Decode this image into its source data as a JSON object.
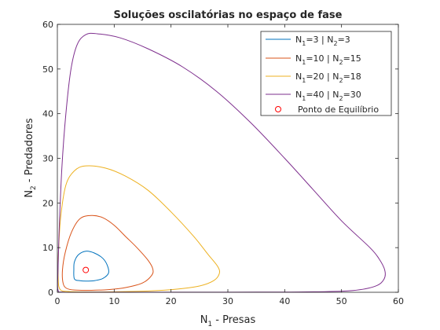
{
  "chart_data": {
    "type": "line",
    "title": "Soluções oscilatórias no espaço de fase",
    "xlabel": {
      "main": "N",
      "sub": "1",
      "rest": " - Presas"
    },
    "ylabel": {
      "main": "N",
      "sub": "2",
      "rest": " - Predadores"
    },
    "xlim": [
      0,
      60
    ],
    "ylim": [
      0,
      60
    ],
    "xticks": [
      0,
      10,
      20,
      30,
      40,
      50,
      60
    ],
    "yticks": [
      0,
      10,
      20,
      30,
      40,
      50,
      60
    ],
    "grid": false,
    "legend_position": "top-right",
    "series": [
      {
        "name": [
          [
            "N",
            "1",
            "=3 | N"
          ],
          [
            "",
            "2",
            "=3"
          ]
        ],
        "color": "#0072BD",
        "points": [
          [
            3,
            3
          ],
          [
            4,
            2.6
          ],
          [
            5,
            2.5
          ],
          [
            6.5,
            2.6
          ],
          [
            8,
            3.1
          ],
          [
            9,
            4.3
          ],
          [
            8.8,
            6
          ],
          [
            8,
            7.6
          ],
          [
            6.5,
            8.8
          ],
          [
            5,
            9.2
          ],
          [
            3.7,
            8.4
          ],
          [
            3,
            6.8
          ],
          [
            2.9,
            5.2
          ],
          [
            3,
            3
          ]
        ]
      },
      {
        "name": [
          [
            "N",
            "1",
            "=10 | N"
          ],
          [
            "",
            "2",
            "=15"
          ]
        ],
        "color": "#D95319",
        "points": [
          [
            10,
            15
          ],
          [
            8,
            16.7
          ],
          [
            6,
            17.2
          ],
          [
            4,
            16.5
          ],
          [
            2.5,
            13.5
          ],
          [
            1.4,
            9
          ],
          [
            0.9,
            5
          ],
          [
            1,
            2.1
          ],
          [
            1.6,
            0.9
          ],
          [
            3,
            0.5
          ],
          [
            6,
            0.45
          ],
          [
            9,
            0.6
          ],
          [
            12,
            1.05
          ],
          [
            15,
            2.1
          ],
          [
            16.6,
            3.8
          ],
          [
            16.8,
            5.2
          ],
          [
            16,
            7.1
          ],
          [
            14,
            10
          ],
          [
            12,
            12.5
          ],
          [
            10,
            15
          ]
        ]
      },
      {
        "name": [
          [
            "N",
            "1",
            "=20 | N"
          ],
          [
            "",
            "2",
            "=18"
          ]
        ],
        "color": "#EDB120",
        "points": [
          [
            20,
            18
          ],
          [
            16,
            22.8
          ],
          [
            12,
            26
          ],
          [
            8.5,
            27.8
          ],
          [
            5,
            28.3
          ],
          [
            3,
            27.2
          ],
          [
            1.5,
            24
          ],
          [
            0.6,
            17
          ],
          [
            0.2,
            9
          ],
          [
            0.15,
            3
          ],
          [
            0.5,
            0.6
          ],
          [
            2,
            0.18
          ],
          [
            5,
            0.08
          ],
          [
            10,
            0.1
          ],
          [
            16,
            0.28
          ],
          [
            21,
            0.7
          ],
          [
            25,
            1.4
          ],
          [
            27.5,
            2.6
          ],
          [
            28.5,
            4.2
          ],
          [
            28.2,
            5.8
          ],
          [
            26.5,
            8.5
          ],
          [
            24,
            12.5
          ],
          [
            20,
            18
          ]
        ]
      },
      {
        "name": [
          [
            "N",
            "1",
            "=40 | N"
          ],
          [
            "",
            "2",
            "=30"
          ]
        ],
        "color": "#7E2F8E",
        "points": [
          [
            40,
            30
          ],
          [
            34,
            38
          ],
          [
            28,
            45
          ],
          [
            22,
            50.5
          ],
          [
            16,
            54.5
          ],
          [
            11,
            57
          ],
          [
            7,
            57.9
          ],
          [
            5,
            57.7
          ],
          [
            3.5,
            55.5
          ],
          [
            2.4,
            50
          ],
          [
            1.5,
            40
          ],
          [
            0.8,
            28
          ],
          [
            0.35,
            15
          ],
          [
            0.12,
            5
          ],
          [
            0.1,
            0.6
          ],
          [
            1,
            0.04
          ],
          [
            5,
            0.02
          ],
          [
            15,
            0.02
          ],
          [
            25,
            0.03
          ],
          [
            35,
            0.04
          ],
          [
            45,
            0.1
          ],
          [
            52,
            0.4
          ],
          [
            56,
            1.4
          ],
          [
            57.5,
            3
          ],
          [
            57.6,
            5
          ],
          [
            56.6,
            7.5
          ],
          [
            55,
            10
          ],
          [
            50,
            16
          ],
          [
            45,
            23
          ],
          [
            40,
            30
          ]
        ]
      }
    ],
    "equilibrium": {
      "label": "Ponto de Equilíbrio",
      "color": "#FF0000",
      "x": 5,
      "y": 5
    }
  }
}
